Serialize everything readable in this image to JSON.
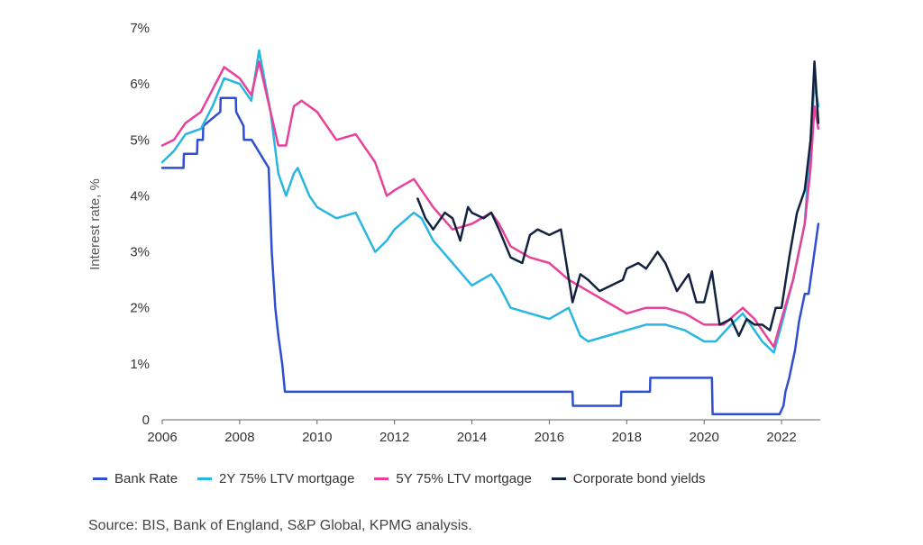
{
  "chart_data": {
    "type": "line",
    "ylabel": "Interest rate, %",
    "xlabel": "",
    "title": "",
    "xlim": [
      2006,
      2023
    ],
    "ylim": [
      0,
      7
    ],
    "x_ticks": [
      "2006",
      "2008",
      "2010",
      "2012",
      "2014",
      "2016",
      "2018",
      "2020",
      "2022"
    ],
    "y_ticks": [
      "0",
      "1%",
      "2%",
      "3%",
      "4%",
      "5%",
      "6%",
      "7%"
    ],
    "legend_position": "bottom",
    "grid": false,
    "series": [
      {
        "name": "Bank Rate",
        "color": "#2e4fd1",
        "x": [
          2006.0,
          2006.55,
          2006.56,
          2006.9,
          2006.91,
          2007.05,
          2007.06,
          2007.5,
          2007.51,
          2007.9,
          2007.91,
          2008.1,
          2008.11,
          2008.3,
          2008.31,
          2008.75,
          2008.83,
          2008.92,
          2009.0,
          2009.1,
          2009.17,
          2016.6,
          2016.61,
          2017.85,
          2017.86,
          2018.6,
          2018.61,
          2020.2,
          2020.22,
          2021.95,
          2022.05,
          2022.1,
          2022.2,
          2022.35,
          2022.45,
          2022.6,
          2022.7,
          2022.85,
          2022.95
        ],
        "values": [
          4.5,
          4.5,
          4.75,
          4.75,
          5.0,
          5.0,
          5.25,
          5.5,
          5.75,
          5.75,
          5.5,
          5.25,
          5.0,
          5.0,
          5.0,
          4.5,
          3.0,
          2.0,
          1.5,
          1.0,
          0.5,
          0.5,
          0.25,
          0.25,
          0.5,
          0.5,
          0.75,
          0.75,
          0.1,
          0.1,
          0.25,
          0.5,
          0.75,
          1.25,
          1.75,
          2.25,
          2.25,
          3.0,
          3.5
        ]
      },
      {
        "name": "2Y 75% LTV mortgage",
        "color": "#29b6e0",
        "x": [
          2006.0,
          2006.3,
          2006.6,
          2007.0,
          2007.3,
          2007.6,
          2008.0,
          2008.3,
          2008.5,
          2008.8,
          2009.0,
          2009.2,
          2009.4,
          2009.5,
          2009.8,
          2010.0,
          2010.5,
          2011.0,
          2011.5,
          2011.8,
          2012.0,
          2012.5,
          2012.7,
          2013.0,
          2013.5,
          2014.0,
          2014.5,
          2014.7,
          2015.0,
          2015.5,
          2016.0,
          2016.5,
          2016.8,
          2017.0,
          2017.5,
          2018.0,
          2018.5,
          2019.0,
          2019.5,
          2020.0,
          2020.3,
          2020.7,
          2021.0,
          2021.3,
          2021.5,
          2021.8,
          2022.0,
          2022.3,
          2022.6,
          2022.75,
          2022.85,
          2022.95
        ],
        "values": [
          4.6,
          4.8,
          5.1,
          5.2,
          5.6,
          6.1,
          6.0,
          5.7,
          6.6,
          5.5,
          4.4,
          4.0,
          4.4,
          4.5,
          4.0,
          3.8,
          3.6,
          3.7,
          3.0,
          3.2,
          3.4,
          3.7,
          3.6,
          3.2,
          2.8,
          2.4,
          2.6,
          2.4,
          2.0,
          1.9,
          1.8,
          2.0,
          1.5,
          1.4,
          1.5,
          1.6,
          1.7,
          1.7,
          1.6,
          1.4,
          1.4,
          1.7,
          1.9,
          1.6,
          1.4,
          1.2,
          1.7,
          2.5,
          3.5,
          5.0,
          6.0,
          5.6
        ]
      },
      {
        "name": "5Y 75% LTV mortgage",
        "color": "#e8419a",
        "x": [
          2006.0,
          2006.3,
          2006.6,
          2007.0,
          2007.3,
          2007.6,
          2008.0,
          2008.3,
          2008.5,
          2008.8,
          2009.0,
          2009.2,
          2009.4,
          2009.6,
          2009.8,
          2010.0,
          2010.5,
          2011.0,
          2011.3,
          2011.5,
          2011.8,
          2012.0,
          2012.5,
          2012.7,
          2013.0,
          2013.5,
          2014.0,
          2014.5,
          2014.7,
          2015.0,
          2015.5,
          2016.0,
          2016.5,
          2017.0,
          2017.5,
          2018.0,
          2018.5,
          2019.0,
          2019.5,
          2020.0,
          2020.5,
          2021.0,
          2021.3,
          2021.6,
          2021.8,
          2022.0,
          2022.3,
          2022.6,
          2022.75,
          2022.85,
          2022.95
        ],
        "values": [
          4.9,
          5.0,
          5.3,
          5.5,
          5.9,
          6.3,
          6.1,
          5.8,
          6.4,
          5.5,
          4.9,
          4.9,
          5.6,
          5.7,
          5.6,
          5.5,
          5.0,
          5.1,
          4.8,
          4.6,
          4.0,
          4.1,
          4.3,
          4.1,
          3.8,
          3.4,
          3.5,
          3.7,
          3.5,
          3.1,
          2.9,
          2.8,
          2.5,
          2.3,
          2.1,
          1.9,
          2.0,
          2.0,
          1.9,
          1.7,
          1.7,
          2.0,
          1.8,
          1.5,
          1.3,
          1.8,
          2.5,
          3.5,
          4.5,
          5.6,
          5.2
        ]
      },
      {
        "name": "Corporate bond yields",
        "color": "#13233f",
        "x": [
          2012.6,
          2012.8,
          2013.0,
          2013.3,
          2013.5,
          2013.7,
          2013.9,
          2014.0,
          2014.3,
          2014.5,
          2014.7,
          2015.0,
          2015.3,
          2015.5,
          2015.7,
          2016.0,
          2016.3,
          2016.6,
          2016.8,
          2017.0,
          2017.3,
          2017.6,
          2017.9,
          2018.0,
          2018.3,
          2018.5,
          2018.8,
          2019.0,
          2019.3,
          2019.6,
          2019.8,
          2020.0,
          2020.2,
          2020.4,
          2020.7,
          2020.9,
          2021.1,
          2021.3,
          2021.5,
          2021.7,
          2021.85,
          2022.0,
          2022.2,
          2022.4,
          2022.6,
          2022.75,
          2022.85,
          2022.95
        ],
        "values": [
          3.95,
          3.6,
          3.4,
          3.7,
          3.6,
          3.2,
          3.8,
          3.7,
          3.6,
          3.7,
          3.4,
          2.9,
          2.8,
          3.3,
          3.4,
          3.3,
          3.4,
          2.1,
          2.6,
          2.5,
          2.3,
          2.4,
          2.5,
          2.7,
          2.8,
          2.7,
          3.0,
          2.8,
          2.3,
          2.6,
          2.1,
          2.1,
          2.65,
          1.7,
          1.8,
          1.5,
          1.8,
          1.7,
          1.7,
          1.6,
          2.0,
          2.0,
          2.9,
          3.7,
          4.1,
          5.0,
          6.4,
          5.3
        ]
      }
    ]
  },
  "legend": {
    "items": [
      {
        "label": "Bank Rate",
        "color": "#2e4fd1"
      },
      {
        "label": "2Y 75% LTV mortgage",
        "color": "#29b6e0"
      },
      {
        "label": "5Y 75% LTV mortgage",
        "color": "#e8419a"
      },
      {
        "label": "Corporate bond yields",
        "color": "#13233f"
      }
    ]
  },
  "source_note": "Source: BIS, Bank of England, S&P Global, KPMG analysis."
}
